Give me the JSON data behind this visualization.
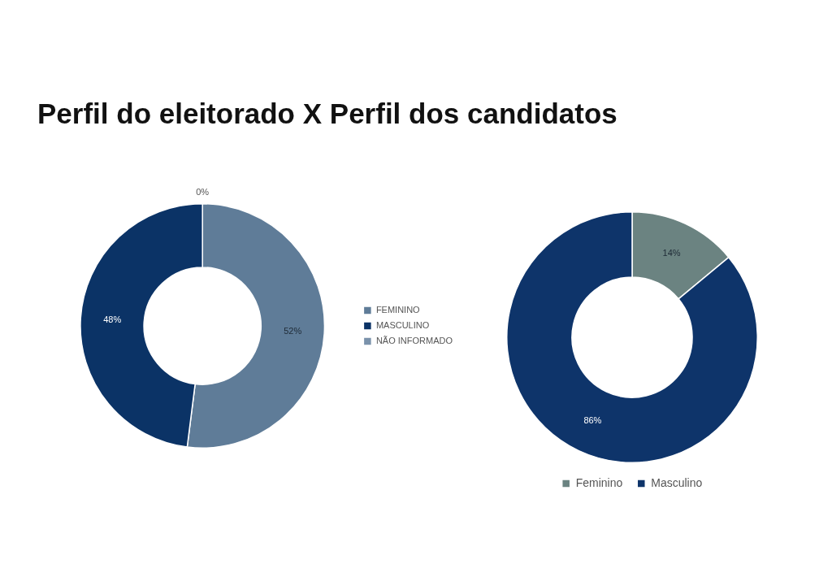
{
  "chart_data": [
    {
      "type": "donut",
      "title": "Perfil do eleitorado X Perfil dos candidatos",
      "categories": [
        "FEMININO",
        "MASCULINO",
        "NÃO INFORMADO"
      ],
      "values": [
        52,
        48,
        0
      ],
      "value_labels": [
        "52%",
        "48%",
        "0%"
      ],
      "colors": [
        "#5f7c98",
        "#0b3366",
        "#7a92ab"
      ],
      "legend": "right"
    },
    {
      "type": "donut",
      "categories": [
        "Feminino",
        "Masculino"
      ],
      "values": [
        14,
        86
      ],
      "value_labels": [
        "14%",
        "86%"
      ],
      "colors": [
        "#6b8381",
        "#0e346a"
      ],
      "legend": "bottom"
    }
  ]
}
